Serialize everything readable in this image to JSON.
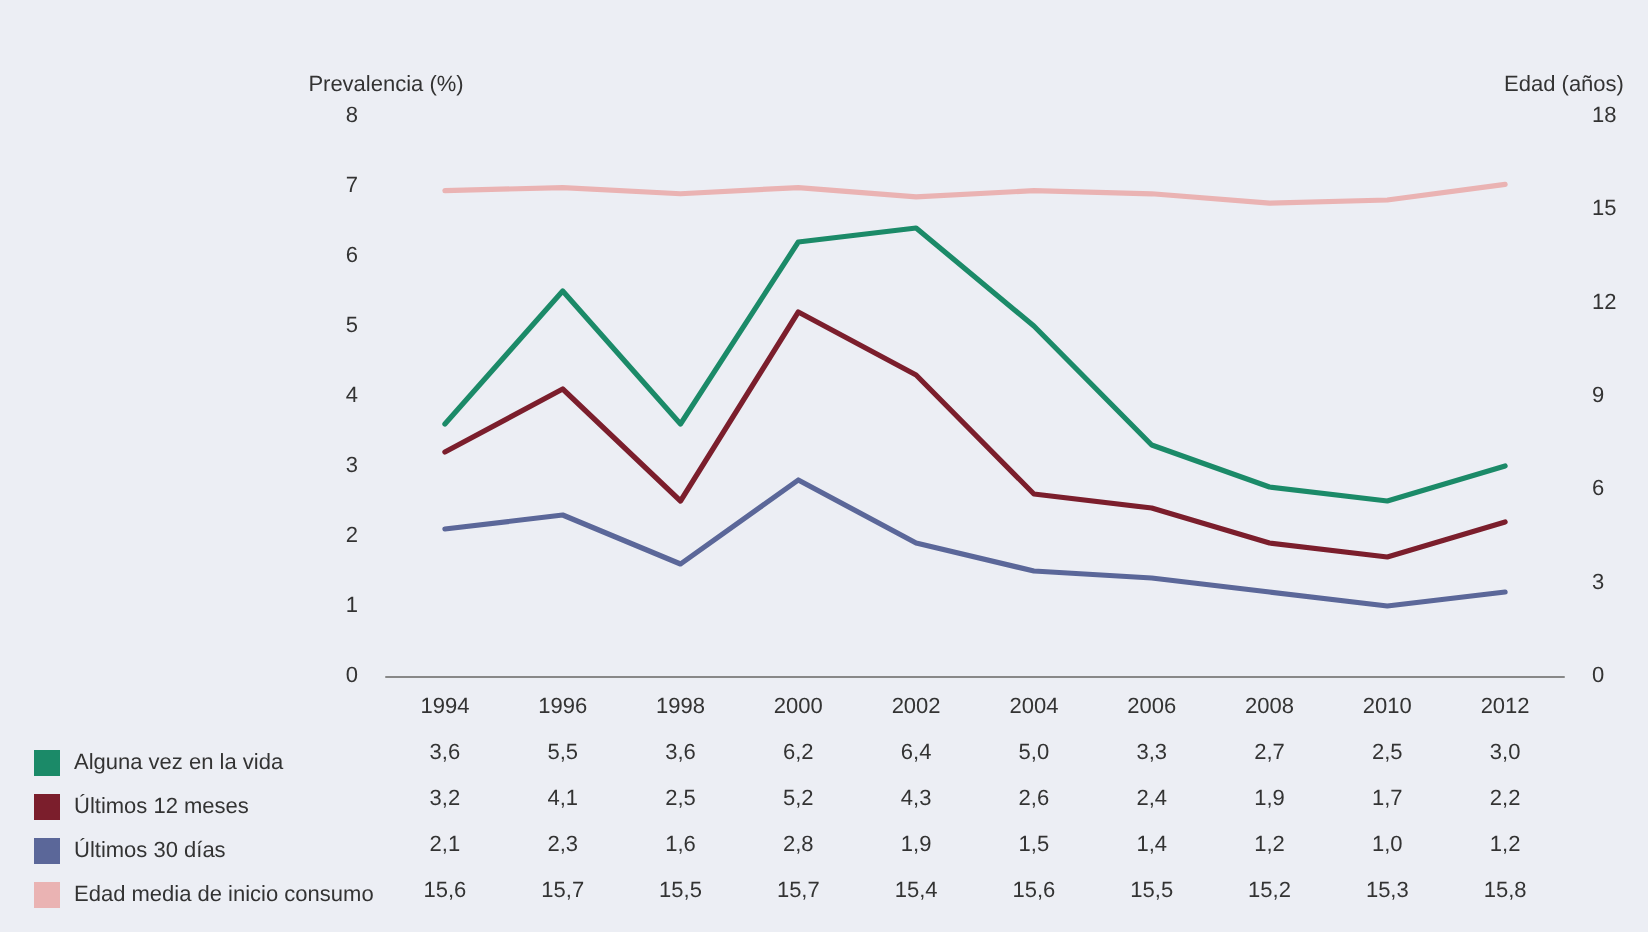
{
  "chart_data": {
    "type": "line",
    "categories": [
      "1994",
      "1996",
      "1998",
      "2000",
      "2002",
      "2004",
      "2006",
      "2008",
      "2010",
      "2012"
    ],
    "ylabel": "Prevalencia (%)",
    "y2label": "Edad (años)",
    "ylim": [
      0,
      8
    ],
    "yticks": [
      0,
      1,
      2,
      3,
      4,
      5,
      6,
      7,
      8
    ],
    "y2lim": [
      0,
      18
    ],
    "y2ticks": [
      0,
      3,
      6,
      9,
      12,
      15,
      18
    ],
    "grid": false,
    "legend": "bottom left",
    "marker": "none",
    "line_style": "solid",
    "series": [
      {
        "name": "Alguna vez en la vida",
        "color": "#1b8a68",
        "values": [
          3.6,
          5.5,
          3.6,
          6.2,
          6.4,
          5.0,
          3.3,
          2.7,
          2.5,
          3.0
        ],
        "value_labels": [
          "3,6",
          "5,5",
          "3,6",
          "6,2",
          "6,4",
          "5,0",
          "3,3",
          "2,7",
          "2,5",
          "3,0"
        ]
      },
      {
        "name": "Últimos 12 meses",
        "color": "#7b1e2c",
        "values": [
          3.2,
          4.1,
          2.5,
          5.2,
          4.3,
          2.6,
          2.4,
          1.9,
          1.7,
          2.2
        ],
        "value_labels": [
          "3,2",
          "4,1",
          "2,5",
          "5,2",
          "4,3",
          "2,6",
          "2,4",
          "1,9",
          "1,7",
          "2,2"
        ]
      },
      {
        "name": "Últimos 30 días",
        "color": "#5b6799",
        "values": [
          2.1,
          2.3,
          1.6,
          2.8,
          1.9,
          1.5,
          1.4,
          1.2,
          1.0,
          1.2
        ],
        "value_labels": [
          "2,1",
          "2,3",
          "1,6",
          "2,8",
          "1,9",
          "1,5",
          "1,4",
          "1,2",
          "1,0",
          "1,2"
        ]
      },
      {
        "name": "Edad media de inicio consumo",
        "color": "#eab3b3",
        "axis": "y2",
        "values": [
          15.6,
          15.7,
          15.5,
          15.7,
          15.4,
          15.6,
          15.5,
          15.2,
          15.3,
          15.8
        ],
        "value_labels": [
          "15,6",
          "15,7",
          "15,5",
          "15,7",
          "15,4",
          "15,6",
          "15,5",
          "15,2",
          "15,3",
          "15,8"
        ]
      }
    ]
  }
}
